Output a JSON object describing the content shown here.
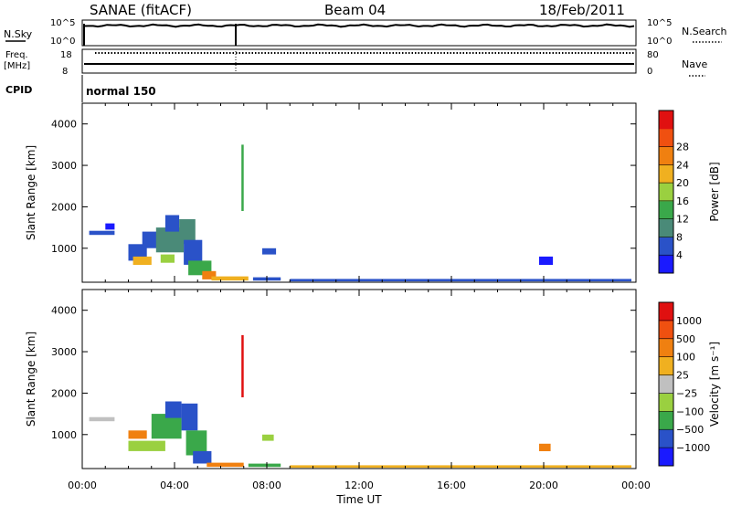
{
  "header": {
    "station": "SANAE (fitACF)",
    "beam": "Beam 04",
    "date": "18/Feb/2011"
  },
  "panel_labels": {
    "nsky": "N.Sky",
    "freq_line1": "Freq.",
    "freq_line2": "[MHz]",
    "cpid": "CPID",
    "nsearch": "N.Search",
    "nave": "Nave",
    "nsky_top": "10^5",
    "nsky_bottom": "10^0",
    "nsearch_top": "10^5",
    "nsearch_bottom": "10^0",
    "freq_top": "18",
    "freq_bottom": "8",
    "nave_top": "80",
    "nave_bottom": "0",
    "cpid_value": "normal 150"
  },
  "colors": {
    "power_scale": [
      "#1a1aff",
      "#2a52c8",
      "#4a8a78",
      "#3aa84a",
      "#9ad040",
      "#f0b020",
      "#f08010",
      "#f05010",
      "#e01010"
    ],
    "velocity_scale": [
      "#e01010",
      "#f05010",
      "#f08010",
      "#f0b020",
      "#c0c0c0",
      "#9ad040",
      "#3aa84a",
      "#2a52c8",
      "#1a1aff"
    ]
  },
  "chart_data": [
    {
      "type": "heatmap",
      "name": "power",
      "xlabel": "",
      "ylabel": "Slant Range [km]",
      "ylim": [
        180,
        4500
      ],
      "xlim": [
        0,
        24
      ],
      "yticks": [
        "1000",
        "2000",
        "3000",
        "4000"
      ],
      "colorbar_label": "Power [dB]",
      "colorbar_ticks": [
        "4",
        "8",
        "12",
        "16",
        "20",
        "24",
        "28"
      ],
      "regions": [
        {
          "t0": 0.3,
          "t1": 1.4,
          "r0": 1320,
          "r1": 1420,
          "c": 1
        },
        {
          "t0": 1.0,
          "t1": 1.4,
          "r0": 1450,
          "r1": 1600,
          "c": 0
        },
        {
          "t0": 2.0,
          "t1": 2.8,
          "r0": 700,
          "r1": 1100,
          "c": 1
        },
        {
          "t0": 2.2,
          "t1": 3.0,
          "r0": 600,
          "r1": 800,
          "c": 5
        },
        {
          "t0": 2.6,
          "t1": 3.4,
          "r0": 1000,
          "r1": 1400,
          "c": 1
        },
        {
          "t0": 3.2,
          "t1": 4.4,
          "r0": 900,
          "r1": 1500,
          "c": 2
        },
        {
          "t0": 3.6,
          "t1": 4.2,
          "r0": 1400,
          "r1": 1800,
          "c": 1
        },
        {
          "t0": 3.4,
          "t1": 4.0,
          "r0": 650,
          "r1": 850,
          "c": 4
        },
        {
          "t0": 4.2,
          "t1": 4.9,
          "r0": 1100,
          "r1": 1700,
          "c": 2
        },
        {
          "t0": 4.4,
          "t1": 5.2,
          "r0": 600,
          "r1": 1200,
          "c": 1
        },
        {
          "t0": 4.6,
          "t1": 5.6,
          "r0": 350,
          "r1": 700,
          "c": 3
        },
        {
          "t0": 5.2,
          "t1": 5.8,
          "r0": 250,
          "r1": 450,
          "c": 6
        },
        {
          "t0": 5.6,
          "t1": 7.2,
          "r0": 220,
          "r1": 320,
          "c": 5
        },
        {
          "t0": 7.4,
          "t1": 8.6,
          "r0": 220,
          "r1": 300,
          "c": 1
        },
        {
          "t0": 7.8,
          "t1": 8.4,
          "r0": 850,
          "r1": 1000,
          "c": 1
        },
        {
          "t0": 6.9,
          "t1": 7.0,
          "r0": 1900,
          "r1": 3500,
          "c": 3
        },
        {
          "t0": 19.8,
          "t1": 20.4,
          "r0": 600,
          "r1": 800,
          "c": 0
        },
        {
          "t0": 9.0,
          "t1": 23.8,
          "r0": 200,
          "r1": 260,
          "c": 1
        }
      ]
    },
    {
      "type": "heatmap",
      "name": "velocity",
      "xlabel": "Time UT",
      "ylabel": "Slant Range [km]",
      "ylim": [
        180,
        4500
      ],
      "xlim": [
        0,
        24
      ],
      "xticks": [
        "00:00",
        "04:00",
        "08:00",
        "12:00",
        "16:00",
        "20:00",
        "00:00"
      ],
      "yticks": [
        "1000",
        "2000",
        "3000",
        "4000"
      ],
      "colorbar_label": "Velocity [m s⁻¹]",
      "colorbar_ticks": [
        "1000",
        "500",
        "100",
        "25",
        "−25",
        "−100",
        "−500",
        "−1000"
      ],
      "regions": [
        {
          "t0": 0.3,
          "t1": 1.4,
          "r0": 1320,
          "r1": 1420,
          "c": 4
        },
        {
          "t0": 2.0,
          "t1": 2.8,
          "r0": 900,
          "r1": 1100,
          "c": 2
        },
        {
          "t0": 2.0,
          "t1": 3.6,
          "r0": 600,
          "r1": 850,
          "c": 5
        },
        {
          "t0": 3.0,
          "t1": 4.3,
          "r0": 900,
          "r1": 1500,
          "c": 6
        },
        {
          "t0": 3.6,
          "t1": 4.3,
          "r0": 1400,
          "r1": 1800,
          "c": 7
        },
        {
          "t0": 4.3,
          "t1": 5.0,
          "r0": 1100,
          "r1": 1750,
          "c": 7
        },
        {
          "t0": 4.5,
          "t1": 5.4,
          "r0": 500,
          "r1": 1100,
          "c": 6
        },
        {
          "t0": 4.8,
          "t1": 5.6,
          "r0": 300,
          "r1": 600,
          "c": 7
        },
        {
          "t0": 5.4,
          "t1": 7.0,
          "r0": 220,
          "r1": 320,
          "c": 2
        },
        {
          "t0": 7.2,
          "t1": 8.6,
          "r0": 220,
          "r1": 300,
          "c": 6
        },
        {
          "t0": 7.8,
          "t1": 8.3,
          "r0": 850,
          "r1": 1000,
          "c": 5
        },
        {
          "t0": 6.9,
          "t1": 7.0,
          "r0": 1900,
          "r1": 3400,
          "c": 0
        },
        {
          "t0": 19.8,
          "t1": 20.3,
          "r0": 600,
          "r1": 780,
          "c": 2
        },
        {
          "t0": 9.0,
          "t1": 23.8,
          "r0": 200,
          "r1": 260,
          "c": 3
        }
      ]
    }
  ]
}
